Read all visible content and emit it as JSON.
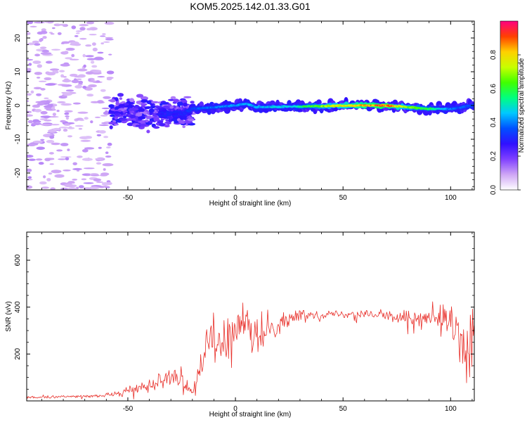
{
  "title": "KOM5.2025.142.01.33.G01",
  "chart_data": [
    {
      "type": "heatmap",
      "xlabel": "Height of straight line (km)",
      "ylabel": "Frequency (Hz)",
      "xlim": [
        -97,
        111
      ],
      "ylim": [
        -25,
        25
      ],
      "xticks": [
        -50,
        0,
        50,
        100
      ],
      "yticks": [
        -20,
        -10,
        0,
        10,
        20
      ],
      "colorbar": {
        "label": "Normalized spectral amplitude",
        "range": [
          0,
          1
        ],
        "ticks": [
          "0.0",
          "0.2",
          "0.4",
          "0.6",
          "0.8"
        ],
        "colors": [
          "#ffffff",
          "#cfa6f5",
          "#8040ff",
          "#3010ff",
          "#0050ff",
          "#00c8ff",
          "#00ff80",
          "#40ff00",
          "#c8ff00",
          "#ffd000",
          "#ff4000",
          "#ff0080"
        ]
      },
      "features": [
        {
          "name": "noise",
          "x_range": [
            -97,
            -58
          ],
          "freq_range": [
            -25,
            25
          ],
          "amplitude": 0.1
        },
        {
          "name": "spread_echo",
          "x_range": [
            -58,
            -20
          ],
          "freq_center": -2,
          "freq_width": 7,
          "amplitude": 0.25
        },
        {
          "name": "main_trace",
          "points": [
            {
              "x": -35,
              "f": -2.5,
              "a": 0.3
            },
            {
              "x": -25,
              "f": -2.5,
              "a": 0.3
            },
            {
              "x": -20,
              "f": -1,
              "a": 0.35
            },
            {
              "x": -10,
              "f": -0.5,
              "a": 0.4
            },
            {
              "x": 0,
              "f": 0,
              "a": 0.45
            },
            {
              "x": 5,
              "f": 0.5,
              "a": 0.45
            },
            {
              "x": 10,
              "f": -0.5,
              "a": 0.45
            },
            {
              "x": 25,
              "f": -0.3,
              "a": 0.5
            },
            {
              "x": 40,
              "f": -0.2,
              "a": 0.7
            },
            {
              "x": 55,
              "f": 0,
              "a": 0.85
            },
            {
              "x": 70,
              "f": 0,
              "a": 0.95
            },
            {
              "x": 80,
              "f": -0.5,
              "a": 0.7
            },
            {
              "x": 90,
              "f": -1,
              "a": 0.6
            },
            {
              "x": 100,
              "f": -1,
              "a": 0.4
            },
            {
              "x": 111,
              "f": 0,
              "a": 0.35
            }
          ]
        }
      ]
    },
    {
      "type": "line",
      "xlabel": "Height of straight line (km)",
      "ylabel": "SNR (v/v)",
      "xlim": [
        -97,
        111
      ],
      "ylim": [
        0,
        720
      ],
      "xticks": [
        -50,
        0,
        50,
        100
      ],
      "yticks": [
        200,
        400,
        600
      ],
      "series": [
        {
          "color": "#e8302a",
          "x": [
            -97,
            -80,
            -65,
            -55,
            -45,
            -35,
            -30,
            -25,
            -20,
            -15,
            -12,
            -8,
            -5,
            0,
            5,
            10,
            15,
            20,
            30,
            40,
            50,
            60,
            70,
            80,
            90,
            100,
            105,
            108,
            110,
            111
          ],
          "y": [
            15,
            18,
            20,
            30,
            55,
            85,
            120,
            90,
            40,
            180,
            260,
            230,
            250,
            290,
            310,
            260,
            300,
            330,
            365,
            370,
            370,
            375,
            360,
            355,
            350,
            330,
            250,
            120,
            320,
            340
          ],
          "noise": [
            4,
            5,
            5,
            8,
            14,
            22,
            35,
            35,
            25,
            55,
            60,
            65,
            65,
            60,
            60,
            60,
            40,
            30,
            15,
            13,
            13,
            14,
            18,
            22,
            25,
            40,
            90,
            150,
            40,
            25
          ]
        }
      ]
    }
  ]
}
